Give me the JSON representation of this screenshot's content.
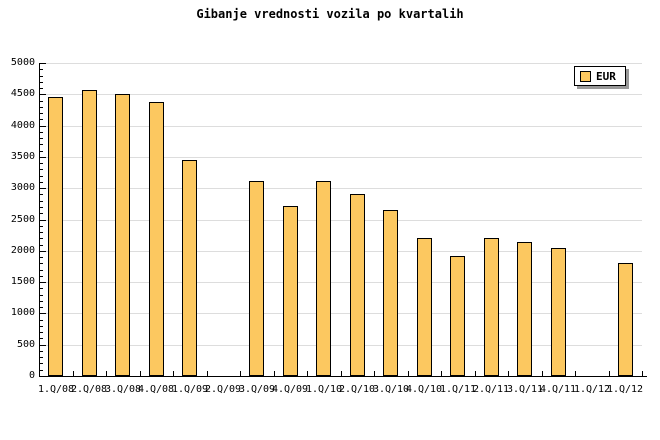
{
  "title": "Gibanje vrednosti vozila po kvartalih",
  "legend": {
    "label": "EUR"
  },
  "colors": {
    "background": "#FFFFFF",
    "bar_fill": "#FCC860",
    "bar_border": "#000000",
    "grid": "#DDDDDD",
    "axis": "#000000",
    "legend_bg": "#FFFFFF",
    "legend_border": "#000000",
    "legend_shadow": "#999999"
  },
  "chart_data": {
    "type": "bar",
    "title": "Gibanje vrednosti vozila po kvartalih",
    "categories": [
      "1.Q/08",
      "2.Q/08",
      "3.Q/08",
      "4.Q/08",
      "1.Q/09",
      "2.Q/09",
      "3.Q/09",
      "4.Q/09",
      "1.Q/10",
      "2.Q/10",
      "3.Q/10",
      "4.Q/10",
      "1.Q/11",
      "2.Q/11",
      "3.Q/11",
      "4.Q/11",
      "1.Q/12",
      "1.Q/12"
    ],
    "series": [
      {
        "name": "EUR",
        "values": [
          4450,
          4570,
          4500,
          4380,
          3450,
          null,
          3120,
          2720,
          3120,
          2910,
          2650,
          2200,
          1920,
          2200,
          2140,
          2050,
          null,
          1800
        ]
      }
    ],
    "xlabel": "",
    "ylabel": "",
    "ylim": [
      0,
      5000
    ],
    "ytick_step": 500,
    "ytick_minor_step": 100,
    "ytick_labels": [
      "0",
      "500",
      "1000",
      "1500",
      "2000",
      "2500",
      "3000",
      "3500",
      "4000",
      "4500",
      "5000"
    ],
    "grid": "horizontal-major",
    "legend_position": "top-right"
  }
}
